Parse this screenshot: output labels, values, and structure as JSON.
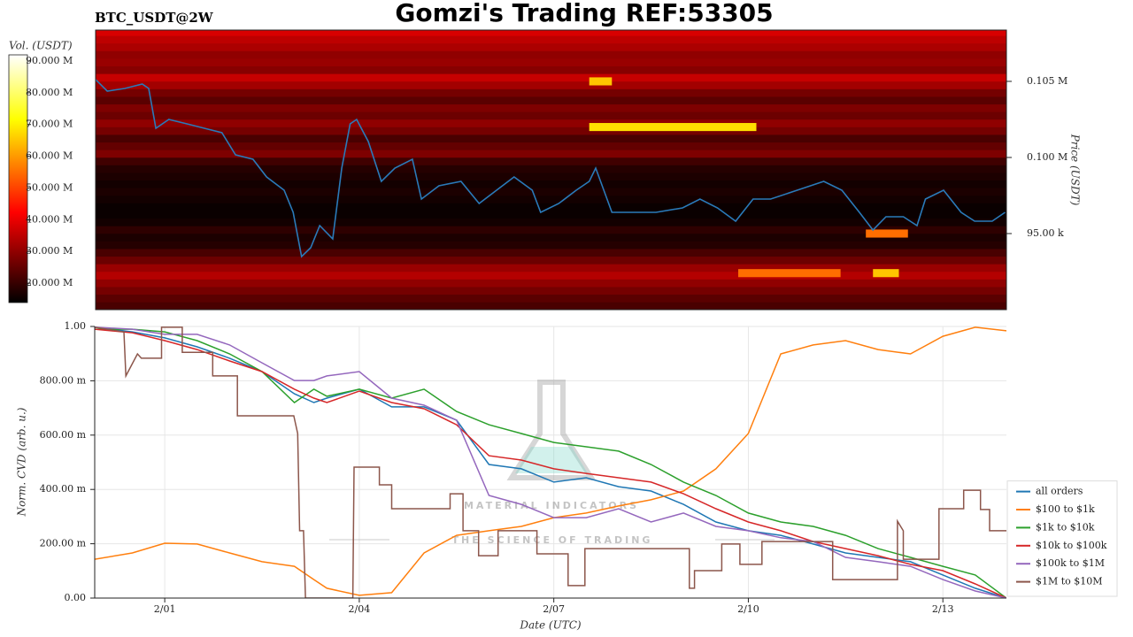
{
  "chart_data": [
    {
      "type": "heatmap",
      "title": "Gomzi's Trading REF:53305",
      "subtitle": "BTC_USDT@2W",
      "ylabel": "Price (USDT)",
      "xlim": [
        -0.08,
        13.98
      ],
      "ylim": [
        90000,
        108370
      ],
      "yticks": [
        {
          "value": 95000,
          "label": "95.00 k"
        },
        {
          "value": 100000,
          "label": "0.100 M"
        },
        {
          "value": 105000,
          "label": "0.105 M"
        }
      ],
      "colorbar": {
        "label": "Vol. (USDT)",
        "colormap": "hot",
        "lim": [
          13900000,
          91950000
        ],
        "ticks": [
          {
            "value": 20000000,
            "label": "20.000 M"
          },
          {
            "value": 30000000,
            "label": "30.000 M"
          },
          {
            "value": 40000000,
            "label": "40.000 M"
          },
          {
            "value": 50000000,
            "label": "50.000 M"
          },
          {
            "value": 60000000,
            "label": "60.000 M"
          },
          {
            "value": 70000000,
            "label": "70.000 M"
          },
          {
            "value": 80000000,
            "label": "80.000 M"
          },
          {
            "value": 90000000,
            "label": "90.000 M"
          }
        ]
      },
      "heatmap": {
        "levels": [
          90250,
          90750,
          91250,
          91750,
          92250,
          92750,
          93250,
          93750,
          94250,
          94750,
          95250,
          95750,
          96250,
          96750,
          97250,
          97750,
          98250,
          98750,
          99250,
          99750,
          100250,
          100750,
          101250,
          101750,
          102250,
          102750,
          103250,
          103750,
          104250,
          104750,
          105250,
          105750,
          106250,
          106750,
          107250,
          107750,
          108250
        ],
        "values": [
          22000000,
          24000000,
          27000000,
          30000000,
          34000000,
          31000000,
          26000000,
          22000000,
          18000000,
          17000000,
          19000000,
          16000000,
          15000000,
          15000000,
          16000000,
          17000000,
          16000000,
          17000000,
          18000000,
          21000000,
          28000000,
          25000000,
          22000000,
          27000000,
          30000000,
          26000000,
          28000000,
          24000000,
          27000000,
          32000000,
          36000000,
          29000000,
          31000000,
          30000000,
          33000000,
          35000000,
          38000000
        ],
        "blocks": [
          {
            "price": 105000,
            "x": [
              7.54,
              7.89
            ],
            "value": 65000000
          },
          {
            "price": 102000,
            "x": [
              7.54,
              10.12
            ],
            "value": 68000000
          },
          {
            "price": 92400,
            "x": [
              9.84,
              11.42
            ],
            "value": 55000000
          },
          {
            "price": 92400,
            "x": [
              11.92,
              12.32
            ],
            "value": 65000000
          },
          {
            "price": 95000,
            "x": [
              11.81,
              12.46
            ],
            "value": 55000000
          }
        ]
      },
      "price": {
        "color": "#2a7ab9",
        "x": [
          -0.08,
          0.1,
          0.37,
          0.64,
          0.74,
          0.85,
          1.05,
          1.33,
          1.6,
          1.87,
          2.08,
          2.35,
          2.56,
          2.83,
          2.97,
          3.1,
          3.24,
          3.38,
          3.58,
          3.72,
          3.85,
          3.95,
          4.13,
          4.33,
          4.54,
          4.81,
          4.95,
          5.22,
          5.56,
          5.84,
          6.11,
          6.38,
          6.66,
          6.79,
          7.07,
          7.34,
          7.54,
          7.64,
          7.89,
          8.16,
          8.57,
          8.98,
          9.25,
          9.52,
          9.8,
          10.07,
          10.34,
          10.75,
          11.16,
          11.44,
          11.71,
          11.92,
          12.12,
          12.39,
          12.6,
          12.73,
          13.01,
          13.28,
          13.49,
          13.76,
          13.96
        ],
        "values": [
          105120,
          104360,
          104535,
          104826,
          104535,
          101919,
          102500,
          102209,
          101919,
          101628,
          100174,
          99884,
          98721,
          97849,
          96395,
          93488,
          94070,
          95523,
          94651,
          99302,
          102209,
          102500,
          101047,
          98430,
          99302,
          99884,
          97267,
          98140,
          98430,
          96977,
          97849,
          98721,
          97849,
          96395,
          96977,
          97849,
          98430,
          99302,
          96395,
          96395,
          96395,
          96686,
          97267,
          96686,
          95814,
          97267,
          97267,
          97849,
          98430,
          97849,
          96395,
          95233,
          96105,
          96105,
          95523,
          97267,
          97849,
          96395,
          95814,
          95814,
          96395
        ]
      }
    },
    {
      "type": "line",
      "xlabel": "Date (UTC)",
      "ylabel": "Norm. CVD (arb. u.)",
      "xlim": [
        -0.08,
        13.98
      ],
      "xticks": [
        {
          "value": 1,
          "label": "2/01"
        },
        {
          "value": 4,
          "label": "2/04"
        },
        {
          "value": 7,
          "label": "2/07"
        },
        {
          "value": 10,
          "label": "2/10"
        },
        {
          "value": 13,
          "label": "2/13"
        }
      ],
      "ylim": [
        0,
        1
      ],
      "yticks": [
        {
          "value": 0,
          "label": "0.00"
        },
        {
          "value": 0.2,
          "label": "200.00 m"
        },
        {
          "value": 0.4,
          "label": "400.00 m"
        },
        {
          "value": 0.6,
          "label": "600.00 m"
        },
        {
          "value": 0.8,
          "label": "800.00 m"
        },
        {
          "value": 1,
          "label": "1.00"
        }
      ],
      "grid": true,
      "legend": "lower right",
      "watermark": {
        "title": "MATERIAL INDICATORS",
        "subtitle": "THE SCIENCE OF TRADING"
      },
      "series": [
        {
          "name": "all orders",
          "color": "#1f77b4",
          "x": [
            -0.08,
            0.5,
            1,
            1.5,
            2,
            2.5,
            3,
            3.3,
            3.5,
            4,
            4.5,
            5,
            5.5,
            6,
            6.5,
            7,
            7.5,
            8,
            8.5,
            9,
            9.5,
            10,
            10.5,
            11,
            11.5,
            12,
            12.5,
            13,
            13.5,
            13.98
          ],
          "values": [
            0.997,
            0.98,
            0.958,
            0.925,
            0.883,
            0.834,
            0.752,
            0.72,
            0.736,
            0.769,
            0.704,
            0.704,
            0.655,
            0.492,
            0.476,
            0.427,
            0.443,
            0.41,
            0.394,
            0.345,
            0.28,
            0.248,
            0.231,
            0.199,
            0.166,
            0.15,
            0.134,
            0.085,
            0.036,
            0
          ]
        },
        {
          "name": "$100 to $1k",
          "color": "#ff7f0e",
          "x": [
            -0.08,
            0.5,
            1,
            1.5,
            2,
            2.5,
            3,
            3.3,
            3.5,
            4,
            4.5,
            5,
            5.5,
            6,
            6.5,
            7,
            7.5,
            8,
            8.5,
            9,
            9.5,
            10,
            10.5,
            11,
            11.5,
            12,
            12.5,
            13,
            13.5,
            13.98
          ],
          "values": [
            0.143,
            0.166,
            0.202,
            0.199,
            0.166,
            0.134,
            0.117,
            0.068,
            0.036,
            0.01,
            0.02,
            0.166,
            0.231,
            0.248,
            0.264,
            0.296,
            0.313,
            0.339,
            0.362,
            0.394,
            0.476,
            0.606,
            0.899,
            0.932,
            0.948,
            0.915,
            0.899,
            0.964,
            0.997,
            0.984
          ]
        },
        {
          "name": "$1k to $10k",
          "color": "#2ca02c",
          "x": [
            -0.08,
            0.5,
            1,
            1.5,
            2,
            2.5,
            3,
            3.3,
            3.5,
            4,
            4.5,
            5,
            5.5,
            6,
            6.5,
            7,
            7.5,
            8,
            8.5,
            9,
            9.5,
            10,
            10.5,
            11,
            11.5,
            12,
            12.5,
            13,
            13.5,
            13.98
          ],
          "values": [
            0.99,
            0.99,
            0.98,
            0.948,
            0.899,
            0.834,
            0.72,
            0.769,
            0.743,
            0.769,
            0.736,
            0.769,
            0.687,
            0.638,
            0.606,
            0.573,
            0.557,
            0.541,
            0.492,
            0.427,
            0.378,
            0.313,
            0.28,
            0.264,
            0.231,
            0.182,
            0.15,
            0.117,
            0.085,
            0
          ]
        },
        {
          "name": "$10k to $100k",
          "color": "#d62728",
          "x": [
            -0.08,
            0.5,
            1,
            1.5,
            2,
            2.5,
            3,
            3.3,
            3.5,
            4,
            4.5,
            5,
            5.5,
            6,
            6.5,
            7,
            7.5,
            8,
            8.5,
            9,
            9.5,
            10,
            10.5,
            11,
            11.5,
            12,
            12.5,
            13,
            13.5,
            13.98
          ],
          "values": [
            0.99,
            0.977,
            0.948,
            0.915,
            0.873,
            0.834,
            0.769,
            0.736,
            0.72,
            0.762,
            0.72,
            0.697,
            0.638,
            0.524,
            0.508,
            0.476,
            0.459,
            0.443,
            0.427,
            0.384,
            0.329,
            0.28,
            0.248,
            0.208,
            0.182,
            0.156,
            0.124,
            0.101,
            0.052,
            0
          ]
        },
        {
          "name": "$100k to $1M",
          "color": "#9467bd",
          "x": [
            -0.08,
            0.5,
            1,
            1.5,
            2,
            2.5,
            3,
            3.3,
            3.5,
            4,
            4.5,
            5,
            5.5,
            6,
            6.5,
            7,
            7.5,
            8,
            8.5,
            9,
            9.5,
            10,
            10.5,
            11,
            11.5,
            12,
            12.5,
            13,
            13.5,
            13.98
          ],
          "values": [
            0.997,
            0.99,
            0.971,
            0.971,
            0.932,
            0.866,
            0.801,
            0.801,
            0.818,
            0.834,
            0.736,
            0.71,
            0.655,
            0.378,
            0.345,
            0.296,
            0.296,
            0.329,
            0.28,
            0.313,
            0.264,
            0.248,
            0.222,
            0.208,
            0.15,
            0.134,
            0.117,
            0.068,
            0.026,
            0
          ]
        },
        {
          "name": "$1M to $10M",
          "color": "#8c564b",
          "x": [
            -0.08,
            0.37,
            0.4,
            0.58,
            0.64,
            0.95,
            0.95,
            1.27,
            1.27,
            1.74,
            1.74,
            2.12,
            2.12,
            2.99,
            3.05,
            3.08,
            3.14,
            3.17,
            3.9,
            3.92,
            4.31,
            4.31,
            4.5,
            4.5,
            5.4,
            5.4,
            5.6,
            5.6,
            5.84,
            5.84,
            6.14,
            6.14,
            6.74,
            6.74,
            7.22,
            7.22,
            7.48,
            7.48,
            9.09,
            9.09,
            9.17,
            9.17,
            9.59,
            9.59,
            9.87,
            9.87,
            10.21,
            10.21,
            11.3,
            11.3,
            12.3,
            12.3,
            12.39,
            12.39,
            12.94,
            12.94,
            13.32,
            13.32,
            13.58,
            13.58,
            13.72,
            13.72,
            13.98
          ],
          "values": [
            0.997,
            0.98,
            0.818,
            0.899,
            0.883,
            0.883,
            0.997,
            0.997,
            0.905,
            0.905,
            0.818,
            0.818,
            0.671,
            0.671,
            0.606,
            0.248,
            0.248,
            0,
            0,
            0.482,
            0.482,
            0.417,
            0.417,
            0.329,
            0.329,
            0.384,
            0.384,
            0.248,
            0.248,
            0.156,
            0.156,
            0.248,
            0.248,
            0.163,
            0.163,
            0.046,
            0.046,
            0.182,
            0.182,
            0.036,
            0.036,
            0.101,
            0.101,
            0.199,
            0.199,
            0.124,
            0.124,
            0.208,
            0.208,
            0.068,
            0.068,
            0.283,
            0.248,
            0.143,
            0.143,
            0.329,
            0.329,
            0.397,
            0.397,
            0.326,
            0.326,
            0.248,
            0.248
          ]
        }
      ]
    }
  ]
}
